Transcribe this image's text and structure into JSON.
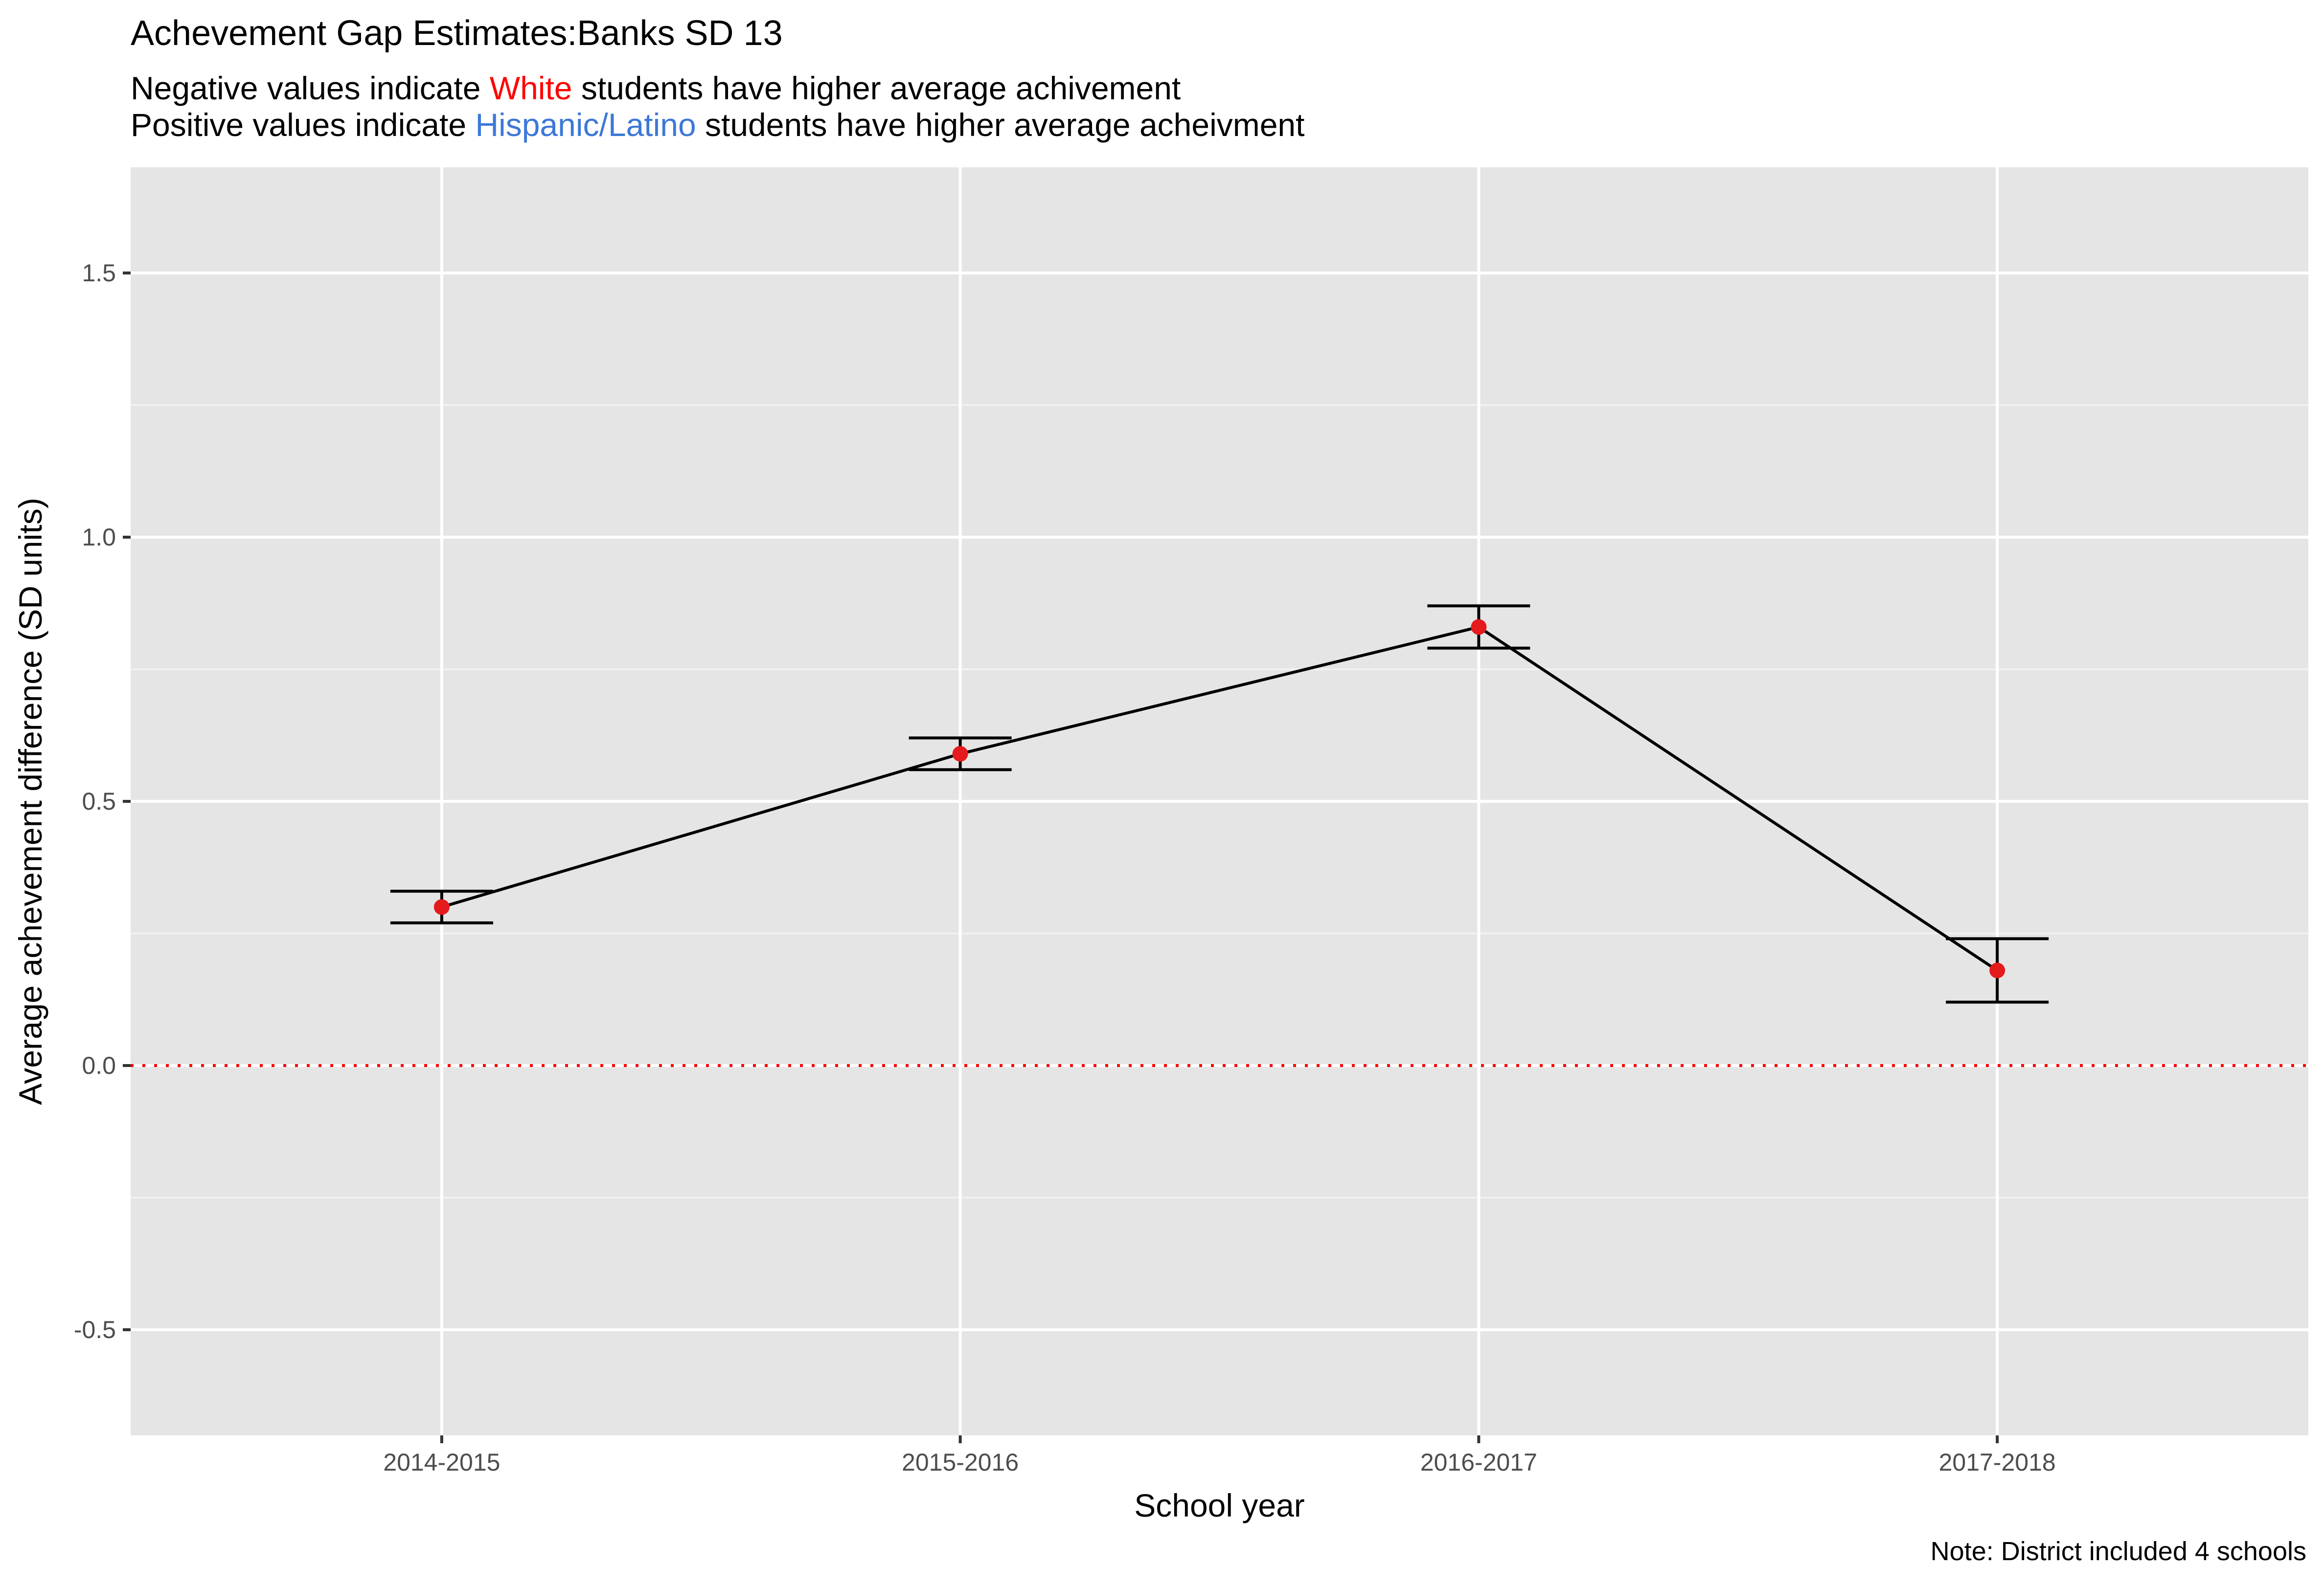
{
  "chart_data": {
    "type": "line",
    "title": "Achevement Gap Estimates:Banks SD 13",
    "subtitle_lines": [
      {
        "before": "Negative values indicate ",
        "highlight": "White",
        "after": " students have higher average achivement",
        "highlight_color": "#ff0000"
      },
      {
        "before": "Positive values indicate ",
        "highlight": "Hispanic/Latino",
        "after": " students have higher average acheivment",
        "highlight_color": "#3c78d8"
      }
    ],
    "xlabel": "School year",
    "ylabel": "Average achevement difference (SD units)",
    "caption": "Note: District included 4 schools",
    "categories": [
      "2014-2015",
      "2015-2016",
      "2016-2017",
      "2017-2018"
    ],
    "series": [
      {
        "values": [
          0.3,
          0.59,
          0.83,
          0.18
        ],
        "lower": [
          0.27,
          0.56,
          0.79,
          0.12
        ],
        "upper": [
          0.33,
          0.62,
          0.87,
          0.24
        ],
        "line_color": "#000000",
        "point_color": "#e41a1c"
      }
    ],
    "ylim": [
      -0.7,
      1.7
    ],
    "yticks": [
      -0.5,
      0.0,
      0.5,
      1.0,
      1.5
    ],
    "ytick_labels": [
      "-0.5",
      "0.0",
      "0.5",
      "1.0",
      "1.5"
    ],
    "reference_line": {
      "y": 0,
      "color": "#ff0000",
      "style": "dotted"
    },
    "grid": true,
    "panel_background": "#e5e5e5",
    "legend": "none"
  }
}
